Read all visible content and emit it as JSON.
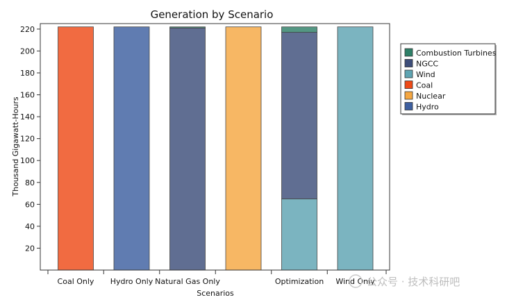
{
  "chart_data": {
    "type": "bar",
    "stacked": true,
    "title": "Generation by Scenario",
    "xlabel": "Scenarios",
    "ylabel": "Thousand Gigawatt-Hours",
    "ylim": [
      0,
      225
    ],
    "yticks": [
      20,
      40,
      60,
      80,
      100,
      120,
      140,
      160,
      180,
      200,
      220
    ],
    "categories": [
      "Coal Only",
      "Hydro Only",
      "Natural Gas Only",
      "",
      "Optimization",
      "Wind Only"
    ],
    "series": [
      {
        "name": "Hydro",
        "color": "#3d5fa0",
        "values": [
          0,
          222,
          0,
          0,
          0,
          0
        ]
      },
      {
        "name": "Nuclear",
        "color": "#f5a742",
        "values": [
          0,
          0,
          0,
          222,
          0,
          0
        ]
      },
      {
        "name": "Coal",
        "color": "#ee4a17",
        "values": [
          222,
          0,
          0,
          0,
          0,
          0
        ]
      },
      {
        "name": "Wind",
        "color": "#5ea4b2",
        "values": [
          0,
          0,
          0,
          0,
          65,
          222
        ]
      },
      {
        "name": "NGCC",
        "color": "#3d4e7a",
        "values": [
          0,
          0,
          221,
          0,
          152,
          0
        ]
      },
      {
        "name": "Combustion Turbines",
        "color": "#2e8068",
        "values": [
          0,
          0,
          1,
          0,
          5,
          0
        ]
      }
    ],
    "legend": {
      "position": "right",
      "order": [
        "Combustion Turbines",
        "NGCC",
        "Wind",
        "Coal",
        "Nuclear",
        "Hydro"
      ],
      "swatches": {
        "Combustion Turbines": "#2e8068",
        "NGCC": "#3d4e7a",
        "Wind": "#5ea4b2",
        "Coal": "#ee4a17",
        "Nuclear": "#f5a742",
        "Hydro": "#3d5fa0"
      }
    },
    "bar_opacity": 0.82,
    "grid": false
  },
  "watermark": "公众号 · 技术科研吧"
}
